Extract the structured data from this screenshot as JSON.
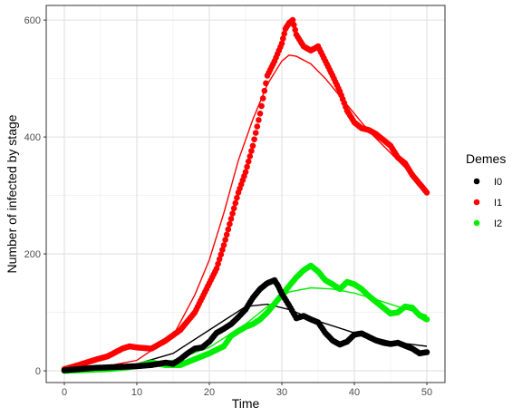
{
  "chart_data": {
    "type": "scatter",
    "xlabel": "Time",
    "ylabel": "Number of infected by stage",
    "xlim": [
      -2.5,
      52.5
    ],
    "ylim": [
      -20,
      625
    ],
    "x_ticks": [
      0,
      10,
      20,
      30,
      40,
      50
    ],
    "y_ticks": [
      0,
      200,
      400,
      600
    ],
    "grid": true,
    "legend": {
      "title": "Demes",
      "position": "right"
    },
    "series": [
      {
        "name": "I0",
        "color": "#000000",
        "points": [
          [
            0,
            1
          ],
          [
            2,
            3
          ],
          [
            4,
            5
          ],
          [
            6,
            6
          ],
          [
            8,
            7
          ],
          [
            10,
            8
          ],
          [
            12,
            10
          ],
          [
            14,
            14
          ],
          [
            15,
            12
          ],
          [
            16,
            20
          ],
          [
            17,
            30
          ],
          [
            18,
            38
          ],
          [
            19,
            40
          ],
          [
            20,
            50
          ],
          [
            21,
            65
          ],
          [
            22,
            72
          ],
          [
            23,
            80
          ],
          [
            24,
            92
          ],
          [
            25,
            105
          ],
          [
            26,
            125
          ],
          [
            27,
            140
          ],
          [
            28,
            150
          ],
          [
            29,
            155
          ],
          [
            29.5,
            145
          ],
          [
            30,
            132
          ],
          [
            31,
            112
          ],
          [
            32,
            90
          ],
          [
            33,
            94
          ],
          [
            34,
            88
          ],
          [
            35,
            83
          ],
          [
            36,
            65
          ],
          [
            37,
            52
          ],
          [
            38,
            45
          ],
          [
            39,
            50
          ],
          [
            40,
            62
          ],
          [
            41,
            64
          ],
          [
            42,
            58
          ],
          [
            43,
            52
          ],
          [
            44,
            48
          ],
          [
            45,
            46
          ],
          [
            46,
            48
          ],
          [
            47,
            43
          ],
          [
            48,
            38
          ],
          [
            49,
            30
          ],
          [
            50,
            32
          ]
        ],
        "fit": [
          [
            0,
            2
          ],
          [
            5,
            4
          ],
          [
            10,
            12
          ],
          [
            15,
            30
          ],
          [
            20,
            70
          ],
          [
            25,
            110
          ],
          [
            28,
            114
          ],
          [
            31,
            105
          ],
          [
            35,
            85
          ],
          [
            40,
            65
          ],
          [
            45,
            50
          ],
          [
            50,
            42
          ]
        ]
      },
      {
        "name": "I1",
        "color": "#ff0000",
        "points": [
          [
            0,
            3
          ],
          [
            2,
            10
          ],
          [
            4,
            18
          ],
          [
            6,
            25
          ],
          [
            8,
            38
          ],
          [
            9,
            42
          ],
          [
            10,
            40
          ],
          [
            12,
            38
          ],
          [
            14,
            52
          ],
          [
            16,
            70
          ],
          [
            18,
            100
          ],
          [
            20,
            150
          ],
          [
            21,
            175
          ],
          [
            22,
            215
          ],
          [
            23,
            260
          ],
          [
            24,
            305
          ],
          [
            25,
            340
          ],
          [
            26,
            385
          ],
          [
            27,
            440
          ],
          [
            28,
            505
          ],
          [
            29,
            530
          ],
          [
            30,
            560
          ],
          [
            30.5,
            585
          ],
          [
            31,
            595
          ],
          [
            31.5,
            600
          ],
          [
            32,
            575
          ],
          [
            33,
            555
          ],
          [
            34,
            548
          ],
          [
            35,
            555
          ],
          [
            36,
            530
          ],
          [
            37,
            505
          ],
          [
            38,
            478
          ],
          [
            39,
            445
          ],
          [
            40,
            425
          ],
          [
            41,
            415
          ],
          [
            42,
            412
          ],
          [
            43,
            405
          ],
          [
            44,
            395
          ],
          [
            45,
            385
          ],
          [
            46,
            365
          ],
          [
            47,
            355
          ],
          [
            48,
            335
          ],
          [
            49,
            320
          ],
          [
            50,
            305
          ]
        ],
        "fit": [
          [
            0,
            2
          ],
          [
            5,
            6
          ],
          [
            10,
            18
          ],
          [
            15,
            60
          ],
          [
            18,
            130
          ],
          [
            20,
            190
          ],
          [
            22,
            270
          ],
          [
            24,
            360
          ],
          [
            26,
            430
          ],
          [
            28,
            490
          ],
          [
            30,
            530
          ],
          [
            31,
            540
          ],
          [
            32,
            538
          ],
          [
            34,
            525
          ],
          [
            36,
            500
          ],
          [
            38,
            470
          ],
          [
            40,
            440
          ],
          [
            42,
            410
          ],
          [
            44,
            385
          ],
          [
            46,
            360
          ],
          [
            48,
            335
          ],
          [
            50,
            310
          ]
        ]
      },
      {
        "name": "I2",
        "color": "#00ee00",
        "points": [
          [
            0,
            0
          ],
          [
            2,
            1
          ],
          [
            4,
            2
          ],
          [
            6,
            3
          ],
          [
            8,
            5
          ],
          [
            10,
            8
          ],
          [
            12,
            14
          ],
          [
            14,
            10
          ],
          [
            16,
            10
          ],
          [
            18,
            20
          ],
          [
            20,
            30
          ],
          [
            22,
            42
          ],
          [
            23,
            60
          ],
          [
            24,
            68
          ],
          [
            25,
            75
          ],
          [
            26,
            80
          ],
          [
            27,
            88
          ],
          [
            28,
            100
          ],
          [
            29,
            115
          ],
          [
            30,
            130
          ],
          [
            31,
            145
          ],
          [
            32,
            160
          ],
          [
            33,
            172
          ],
          [
            34,
            180
          ],
          [
            35,
            170
          ],
          [
            36,
            155
          ],
          [
            37,
            148
          ],
          [
            38,
            140
          ],
          [
            39,
            152
          ],
          [
            40,
            148
          ],
          [
            41,
            140
          ],
          [
            42,
            128
          ],
          [
            43,
            118
          ],
          [
            44,
            108
          ],
          [
            45,
            98
          ],
          [
            46,
            100
          ],
          [
            47,
            110
          ],
          [
            48,
            108
          ],
          [
            49,
            95
          ],
          [
            50,
            88
          ]
        ],
        "fit": [
          [
            0,
            0
          ],
          [
            5,
            2
          ],
          [
            10,
            8
          ],
          [
            15,
            18
          ],
          [
            20,
            40
          ],
          [
            25,
            80
          ],
          [
            28,
            110
          ],
          [
            31,
            135
          ],
          [
            34,
            142
          ],
          [
            37,
            140
          ],
          [
            40,
            133
          ],
          [
            43,
            122
          ],
          [
            46,
            110
          ],
          [
            50,
            95
          ]
        ]
      }
    ]
  }
}
